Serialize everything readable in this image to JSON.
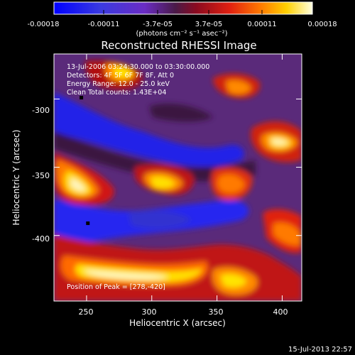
{
  "chart_data": {
    "type": "heatmap",
    "title": "Reconstructed RHESSI Image",
    "xlabel": "Heliocentric X (arcsec)",
    "ylabel": "Heliocentric Y (arcsec)",
    "xlim": [
      225,
      415
    ],
    "ylim": [
      -448,
      -267
    ],
    "x_ticks": [
      "250",
      "300",
      "350",
      "400"
    ],
    "y_ticks": [
      "-300",
      "-350",
      "-400"
    ],
    "colorbar": {
      "tick_labels": [
        "-0.00018",
        "-0.00011",
        "-3.7e-05",
        "3.7e-05",
        "0.00011",
        "0.00018"
      ],
      "unit_label": "(photons cm⁻² s⁻¹ asec⁻²)",
      "colors": [
        "#0000ff",
        "#6a2cc4",
        "#5a1f5a",
        "#c21515",
        "#ff6a00",
        "#ffd800",
        "#ffffd0"
      ]
    },
    "annotations": [
      "13-Jul-2006 03:24:30.000 to 03:30:00.000",
      "Detectors: 4F 5F 6F 7F 8F, Att 0",
      "Energy Range: 12.0 - 25.0 keV",
      "Clean     Total counts: 1.43E+04"
    ],
    "peak_label": "Position of Peak = [278,-420]",
    "peak_position": [
      278,
      -420
    ],
    "minimum_markers": [
      [
        246,
        -299
      ],
      [
        251,
        -391
      ]
    ],
    "intensity_range": [
      -0.00018,
      0.00018
    ]
  },
  "footer": {
    "timestamp": "15-Jul-2013 22:57"
  }
}
